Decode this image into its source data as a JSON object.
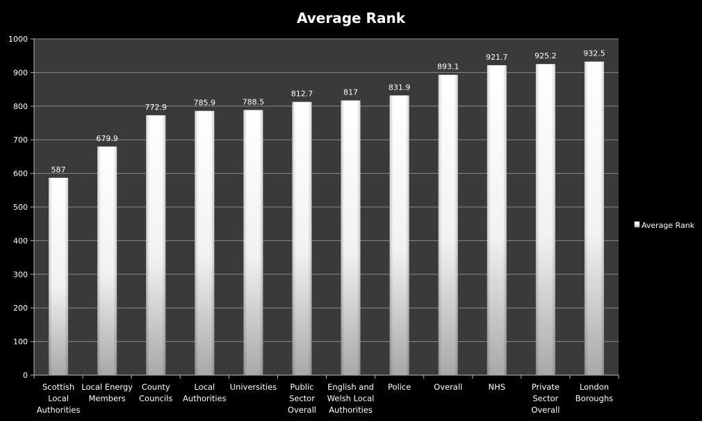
{
  "chart_data": {
    "type": "bar",
    "title": "Average Rank",
    "categories": [
      "Scottish Local Authorities",
      "Local Energy Members",
      "County Councils",
      "Local Authorities",
      "Universities",
      "Public Sector Overall",
      "English and Welsh Local Authorities",
      "Police",
      "Overall",
      "NHS",
      "Private Sector Overall",
      "London Boroughs"
    ],
    "category_lines": [
      [
        "Scottish",
        "Local",
        "Authorities"
      ],
      [
        "Local Energy",
        "Members"
      ],
      [
        "County",
        "Councils"
      ],
      [
        "Local",
        "Authorities"
      ],
      [
        "Universities"
      ],
      [
        "Public",
        "Sector",
        "Overall"
      ],
      [
        "English and",
        "Welsh Local",
        "Authorities"
      ],
      [
        "Police"
      ],
      [
        "Overall"
      ],
      [
        "NHS"
      ],
      [
        "Private",
        "Sector",
        "Overall"
      ],
      [
        "London",
        "Boroughs"
      ]
    ],
    "series": [
      {
        "name": "Average Rank",
        "values": [
          587,
          679.9,
          772.9,
          785.9,
          788.5,
          812.7,
          817,
          831.9,
          893.1,
          921.7,
          925.2,
          932.5
        ],
        "labels": [
          "587",
          "679.9",
          "772.9",
          "785.9",
          "788.5",
          "812.7",
          "817",
          "831.9",
          "893.1",
          "921.7",
          "925.2",
          "932.5"
        ]
      }
    ],
    "ylim": [
      0,
      1000
    ],
    "yticks": [
      0,
      100,
      200,
      300,
      400,
      500,
      600,
      700,
      800,
      900,
      1000
    ],
    "grid": true,
    "legend_position": "right",
    "colors": {
      "background": "#000000",
      "plot_area": "#3a3a3a",
      "gridline": "#8a8a8a",
      "bar_light": "#ffffff",
      "bar_dark": "#a8a8a8",
      "text": "#ffffff"
    }
  }
}
